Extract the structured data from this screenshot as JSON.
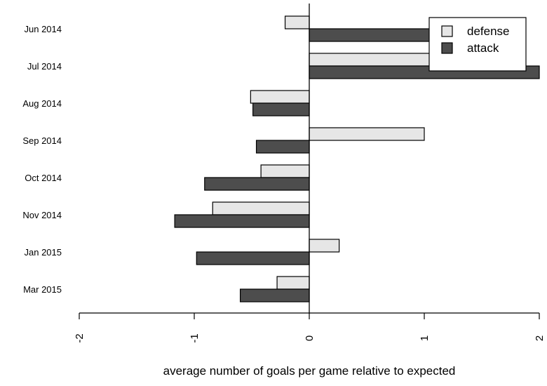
{
  "chart_data": {
    "type": "bar",
    "orientation": "horizontal",
    "categories": [
      "Jun 2014",
      "Jul 2014",
      "Aug 2014",
      "Sep 2014",
      "Oct 2014",
      "Nov 2014",
      "Jan 2015",
      "Mar 2015"
    ],
    "series": [
      {
        "name": "defense",
        "color": "#e6e6e6",
        "values": [
          -0.21,
          1.23,
          -0.51,
          1.0,
          -0.42,
          -0.84,
          0.26,
          -0.28
        ]
      },
      {
        "name": "attack",
        "color": "#4d4d4d",
        "values": [
          1.11,
          2.05,
          -0.49,
          -0.46,
          -0.91,
          -1.17,
          -0.98,
          -0.6
        ]
      }
    ],
    "xlabel": "average number of goals per game relative to expected",
    "xlim": [
      -2,
      2
    ],
    "xticks": [
      "-2",
      "-1",
      "0",
      "1",
      "2"
    ],
    "grid": false,
    "legend_position": "top-right"
  }
}
